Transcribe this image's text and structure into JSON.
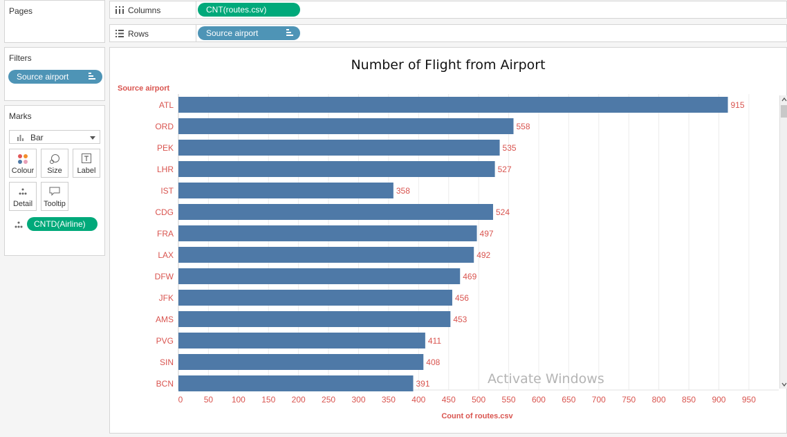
{
  "pages": {
    "title": "Pages"
  },
  "columns": {
    "label": "Columns",
    "pill": "CNT(routes.csv)"
  },
  "rows": {
    "label": "Rows",
    "pill": "Source airport"
  },
  "filters": {
    "title": "Filters",
    "pill": "Source airport"
  },
  "marks": {
    "title": "Marks",
    "type": "Bar",
    "buttons": {
      "colour": "Colour",
      "size": "Size",
      "label": "Label",
      "detail": "Detail",
      "tooltip": "Tooltip"
    },
    "pill": "CNTD(Airline)"
  },
  "colors": {
    "bar": "#4e79a7",
    "label_red": "#d9544f",
    "pill_blue": "#4e94b6",
    "pill_green": "#00a97a"
  },
  "watermark": "Activate Windows",
  "chart_data": {
    "type": "bar",
    "orientation": "horizontal",
    "title": "Number of Flight from Airport",
    "ylabel": "Source airport",
    "xlabel": "Count of routes.csv",
    "categories": [
      "ATL",
      "ORD",
      "PEK",
      "LHR",
      "IST",
      "CDG",
      "FRA",
      "LAX",
      "DFW",
      "JFK",
      "AMS",
      "PVG",
      "SIN",
      "BCN"
    ],
    "values": [
      915,
      558,
      535,
      527,
      358,
      524,
      497,
      492,
      469,
      456,
      453,
      411,
      408,
      391
    ],
    "xticks": [
      0,
      50,
      100,
      150,
      200,
      250,
      300,
      350,
      400,
      450,
      500,
      550,
      600,
      650,
      700,
      750,
      800,
      850,
      900,
      950
    ],
    "xlim": [
      0,
      1000
    ],
    "grid": true
  }
}
